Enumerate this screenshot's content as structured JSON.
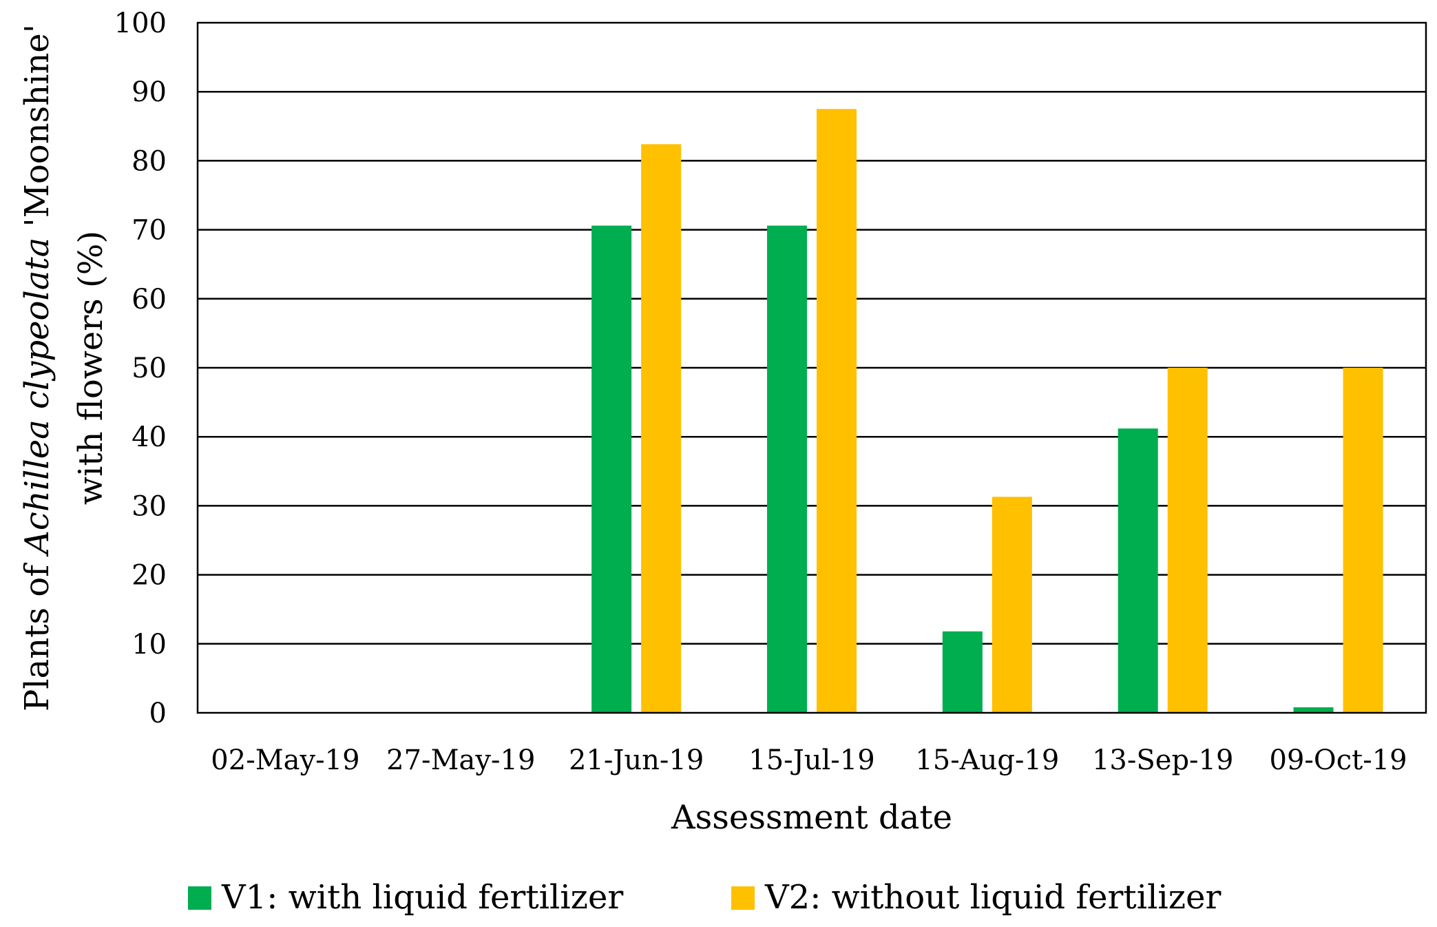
{
  "chart_data": {
    "type": "bar",
    "title": "",
    "xlabel": "Assessment date",
    "ylabel": {
      "prefix": "Plants of ",
      "italic": "Achillea clypeolata",
      "suffix": " 'Moonshine'",
      "line2": "with flowers (%)"
    },
    "ylim": [
      0,
      100
    ],
    "yticks": [
      0,
      10,
      20,
      30,
      40,
      50,
      60,
      70,
      80,
      90,
      100
    ],
    "grid": true,
    "legend_position": "bottom",
    "categories": [
      "02-May-19",
      "27-May-19",
      "21-Jun-19",
      "15-Jul-19",
      "15-Aug-19",
      "13-Sep-19",
      "09-Oct-19"
    ],
    "series": [
      {
        "name": "V1: with liquid fertilizer",
        "color": "#00ad4f",
        "values": [
          0,
          0,
          70.6,
          70.6,
          11.8,
          41.2,
          0.8
        ]
      },
      {
        "name": "V2: without liquid fertilizer",
        "color": "#ffc000",
        "values": [
          0,
          0,
          82.4,
          87.5,
          31.3,
          50.0,
          50.0
        ]
      }
    ]
  }
}
